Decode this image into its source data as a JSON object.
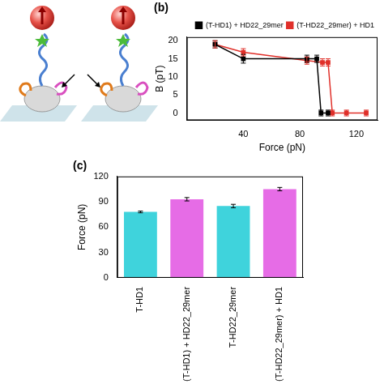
{
  "chart_data": [
    {
      "type": "line",
      "title": "(b)",
      "x_label": "Force (pN)",
      "y_label": "B (pT)",
      "xlim": [
        0,
        135
      ],
      "xticks": [
        40,
        80,
        120
      ],
      "ylim": [
        -2,
        21
      ],
      "yticks": [
        0,
        5,
        10,
        15,
        20
      ],
      "legend": "upper right",
      "series": [
        {
          "name": "(T-HD1) + HD22_29mer",
          "color": "#000000",
          "marker": "square",
          "x": [
            20,
            40,
            85,
            92,
            95,
            100
          ],
          "values": [
            19,
            15,
            15,
            15,
            0,
            0
          ],
          "errors": [
            1,
            1.2,
            1,
            1,
            0.8,
            0.8
          ]
        },
        {
          "name": "(T-HD22_29mer) + HD1",
          "color": "#e0302a",
          "marker": "square",
          "x": [
            20,
            40,
            85,
            96,
            100,
            103,
            113,
            127
          ],
          "values": [
            19,
            16.8,
            14.5,
            14,
            14,
            0,
            0,
            0
          ],
          "errors": [
            1,
            1,
            1,
            1,
            1,
            0.8,
            0.8,
            0.8
          ]
        }
      ]
    },
    {
      "type": "bar",
      "title": "(c)",
      "y_label": "Force (pN)",
      "categories": [
        "T-HD1",
        "(T-HD1) + HD22_29mer",
        "T-HD22_29mer",
        "(T-HD22_29mer) + HD1"
      ],
      "values": [
        78,
        93,
        85,
        105
      ],
      "errors": [
        1,
        2,
        2,
        2
      ],
      "colors": [
        "#3fd3dc",
        "#e66ce6",
        "#3fd3dc",
        "#e66ce6"
      ],
      "ylim": [
        0,
        120
      ],
      "yticks": [
        0,
        30,
        60,
        90,
        120
      ]
    }
  ]
}
